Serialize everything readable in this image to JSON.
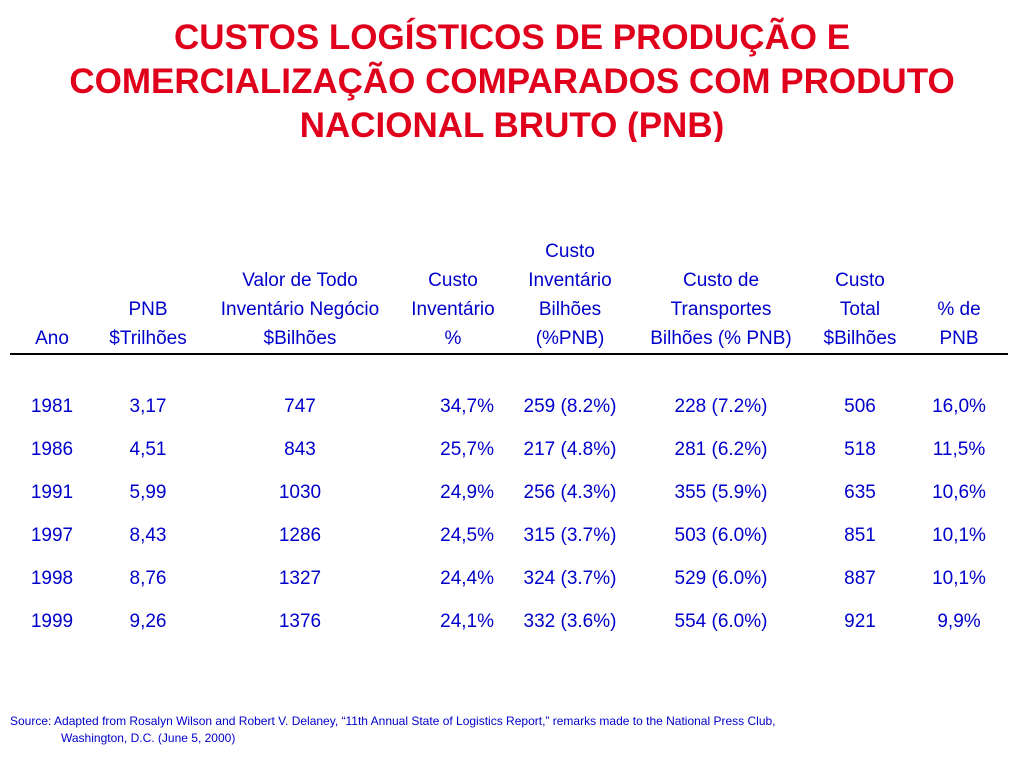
{
  "title": {
    "line1": "CUSTOS LOGÍSTICOS DE PRODUÇÃO E",
    "line2": "COMERCIALIZAÇÃO COMPARADOS COM PRODUTO",
    "line3": "NACIONAL BRUTO (PNB)"
  },
  "table": {
    "headers": [
      [
        "Ano"
      ],
      [
        "PNB",
        "$Trilhões"
      ],
      [
        "Valor de Todo",
        "Inventário Negócio",
        "$Bilhões"
      ],
      [
        "Custo",
        "Inventário",
        "%"
      ],
      [
        "Custo",
        "Inventário",
        "Bilhões",
        "(%PNB)"
      ],
      [
        "Custo de",
        "Transportes",
        "Bilhões (% PNB)"
      ],
      [
        "Custo",
        "Total",
        "$Bilhões"
      ],
      [
        "% de",
        "PNB"
      ]
    ],
    "rows": [
      [
        "1981",
        "3,17",
        "747",
        "34,7%",
        "259 (8.2%)",
        "228 (7.2%)",
        "506",
        "16,0%"
      ],
      [
        "1986",
        "4,51",
        "843",
        "25,7%",
        "217 (4.8%)",
        "281 (6.2%)",
        "518",
        "11,5%"
      ],
      [
        "1991",
        "5,99",
        "1030",
        "24,9%",
        "256 (4.3%)",
        "355 (5.9%)",
        "635",
        "10,6%"
      ],
      [
        "1997",
        "8,43",
        "1286",
        "24,5%",
        "315 (3.7%)",
        "503 (6.0%)",
        "851",
        "10,1%"
      ],
      [
        "1998",
        "8,76",
        "1327",
        "24,4%",
        "324 (3.7%)",
        "529 (6.0%)",
        "887",
        "10,1%"
      ],
      [
        "1999",
        "9,26",
        "1376",
        "24,1%",
        "332 (3.6%)",
        "554 (6.0%)",
        "921",
        "9,9%"
      ]
    ]
  },
  "source": {
    "line1": "Source: Adapted from Rosalyn Wilson and Robert V. Delaney, “11th Annual State of Logistics Report,” remarks made to the National Press Club,",
    "line2": "Washington,  D.C. (June 5, 2000)"
  },
  "colors": {
    "title": "#e0001b",
    "table_text": "#0000cc",
    "rule": "#000000",
    "background": "#ffffff"
  }
}
